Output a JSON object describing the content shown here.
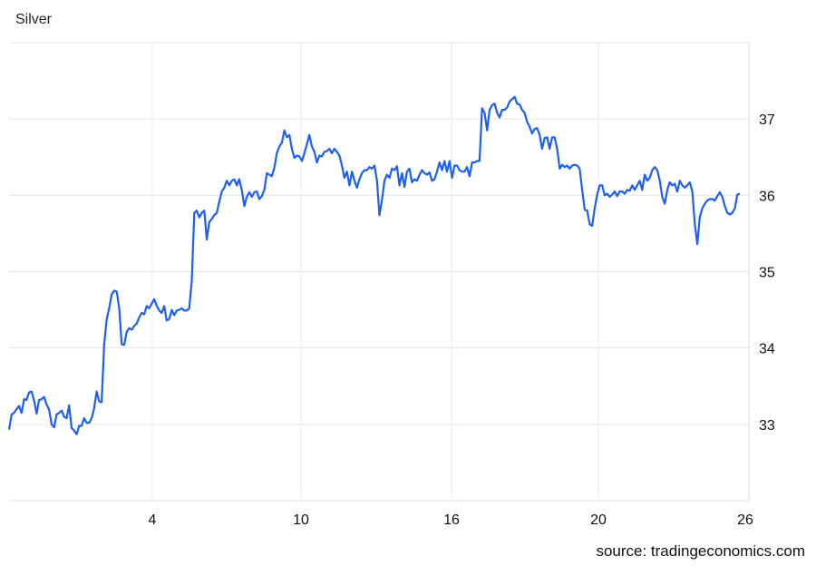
{
  "chart_data": {
    "type": "line",
    "title": "Silver",
    "source": "source: tradingeconomics.com",
    "xlabel": "",
    "ylabel": "",
    "x_tick_labels": [
      "4",
      "10",
      "16",
      "20",
      "26"
    ],
    "y_ticks": [
      33,
      34,
      35,
      36,
      37
    ],
    "ylim": [
      32,
      38
    ],
    "y_axis_side": "right",
    "grid": true,
    "line_color": "#1f5fef",
    "series": [
      {
        "values": [
          32.93,
          33.13,
          33.15,
          33.2,
          33.24,
          33.15,
          33.33,
          33.32,
          33.42,
          33.43,
          33.31,
          33.14,
          33.32,
          33.33,
          33.36,
          33.26,
          33.19,
          33.0,
          32.96,
          33.13,
          33.15,
          33.18,
          33.1,
          33.08,
          33.25,
          32.95,
          32.92,
          32.87,
          32.98,
          32.98,
          33.08,
          33.02,
          33.02,
          33.08,
          33.21,
          33.43,
          33.3,
          33.29,
          34.05,
          34.38,
          34.52,
          34.7,
          34.75,
          34.74,
          34.52,
          34.05,
          34.04,
          34.21,
          34.26,
          34.24,
          34.29,
          34.32,
          34.4,
          34.46,
          34.44,
          34.55,
          34.52,
          34.58,
          34.64,
          34.55,
          34.49,
          34.46,
          34.55,
          34.36,
          34.38,
          34.5,
          34.43,
          34.49,
          34.5,
          34.52,
          34.49,
          34.49,
          34.52,
          34.88,
          35.77,
          35.8,
          35.71,
          35.77,
          35.8,
          35.42,
          35.65,
          35.69,
          35.74,
          35.77,
          35.92,
          36.05,
          36.1,
          36.19,
          36.13,
          36.19,
          36.21,
          36.13,
          36.21,
          36.07,
          35.86,
          35.98,
          36.04,
          35.98,
          36.04,
          36.05,
          35.95,
          35.99,
          36.07,
          36.29,
          36.27,
          36.25,
          36.36,
          36.55,
          36.64,
          36.69,
          36.85,
          36.76,
          36.79,
          36.61,
          36.49,
          36.52,
          36.51,
          36.45,
          36.55,
          36.67,
          36.79,
          36.64,
          36.57,
          36.43,
          36.52,
          36.51,
          36.57,
          36.58,
          36.61,
          36.55,
          36.61,
          36.57,
          36.52,
          36.39,
          36.23,
          36.31,
          36.13,
          36.31,
          36.19,
          36.1,
          36.21,
          36.29,
          36.33,
          36.33,
          36.37,
          36.35,
          36.39,
          36.19,
          35.74,
          35.94,
          36.19,
          36.27,
          36.23,
          36.35,
          36.33,
          36.38,
          36.13,
          36.29,
          36.11,
          36.31,
          36.35,
          36.17,
          36.21,
          36.19,
          36.27,
          36.33,
          36.29,
          36.27,
          36.3,
          36.19,
          36.21,
          36.31,
          36.43,
          36.33,
          36.45,
          36.31,
          36.45,
          36.23,
          36.39,
          36.39,
          36.33,
          36.31,
          36.31,
          36.37,
          36.25,
          36.43,
          36.43,
          36.45,
          36.45,
          37.14,
          37.08,
          36.85,
          37.12,
          37.18,
          37.2,
          37.08,
          37.02,
          37.12,
          37.12,
          37.15,
          37.23,
          37.26,
          37.29,
          37.2,
          37.19,
          37.12,
          37.08,
          36.96,
          36.9,
          36.81,
          36.87,
          36.88,
          36.79,
          36.61,
          36.75,
          36.76,
          36.61,
          36.76,
          36.76,
          36.61,
          36.35,
          36.4,
          36.37,
          36.39,
          36.35,
          36.39,
          36.4,
          36.39,
          36.35,
          36.07,
          35.81,
          35.8,
          35.62,
          35.6,
          35.83,
          36.01,
          36.13,
          36.13,
          36.0,
          36.02,
          35.98,
          36.01,
          36.05,
          35.99,
          36.05,
          36.05,
          36.02,
          36.07,
          36.06,
          36.13,
          36.07,
          36.13,
          36.19,
          36.07,
          36.27,
          36.19,
          36.23,
          36.33,
          36.37,
          36.33,
          36.19,
          35.98,
          35.89,
          36.07,
          36.17,
          36.13,
          36.15,
          36.05,
          36.19,
          36.13,
          36.1,
          36.13,
          36.17,
          36.05,
          35.63,
          35.36,
          35.71,
          35.83,
          35.89,
          35.93,
          35.95,
          35.95,
          35.93,
          35.99,
          36.04,
          35.98,
          35.86,
          35.77,
          35.75,
          35.77,
          35.83,
          36.01,
          36.02
        ]
      }
    ]
  }
}
